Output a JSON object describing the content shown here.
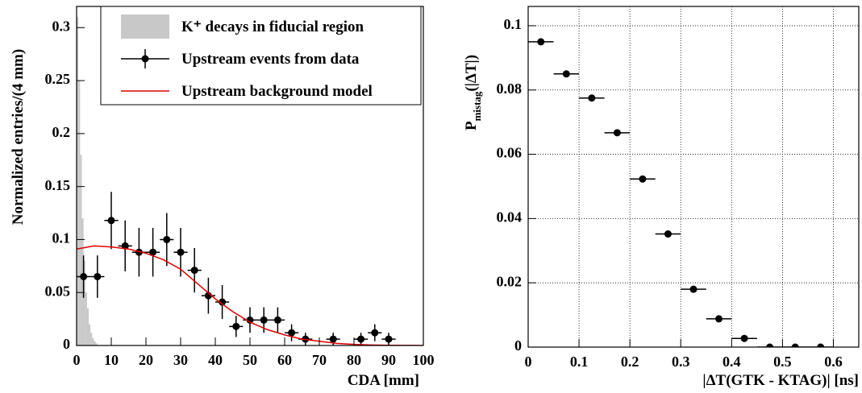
{
  "chart_data": [
    {
      "type": "combo",
      "xlabel": "CDA [mm]",
      "ylabel": "Normalized entries/(4 mm)",
      "xlim": [
        0,
        100
      ],
      "ylim": [
        0,
        0.32
      ],
      "xticks": [
        0,
        10,
        20,
        30,
        40,
        50,
        60,
        70,
        80,
        90,
        100
      ],
      "yticks": [
        0,
        0.05,
        0.1,
        0.15,
        0.2,
        0.25,
        0.3
      ],
      "grid": false,
      "legend": "top-right",
      "series": [
        {
          "name": "K⁺ decays in fiducial region",
          "type": "histogram",
          "color": "#c8c8c8",
          "bins": [
            0,
            0.5,
            1,
            1.5,
            2,
            2.5,
            3,
            3.5,
            4,
            4.5,
            5,
            5.5,
            6
          ],
          "values": [
            0.31,
            0.25,
            0.18,
            0.12,
            0.08,
            0.05,
            0.035,
            0.02,
            0.012,
            0.007,
            0.004,
            0.002
          ]
        },
        {
          "name": "Upstream events from data",
          "type": "errorbar",
          "color": "#000000",
          "x": [
            2,
            6,
            10,
            14,
            18,
            22,
            26,
            30,
            34,
            38,
            42,
            46,
            50,
            54,
            58,
            62,
            66,
            74,
            82,
            86,
            90
          ],
          "values": [
            0.065,
            0.065,
            0.118,
            0.094,
            0.088,
            0.088,
            0.1,
            0.088,
            0.071,
            0.047,
            0.041,
            0.018,
            0.024,
            0.024,
            0.024,
            0.012,
            0.006,
            0.006,
            0.006,
            0.012,
            0.006
          ],
          "xerr": [
            2,
            2,
            2,
            2,
            2,
            2,
            2,
            2,
            2,
            2,
            2,
            2,
            2,
            2,
            2,
            2,
            2,
            2,
            2,
            2,
            2
          ],
          "yerr": [
            0.02,
            0.02,
            0.027,
            0.024,
            0.023,
            0.023,
            0.025,
            0.023,
            0.021,
            0.017,
            0.016,
            0.01,
            0.012,
            0.012,
            0.012,
            0.008,
            0.006,
            0.006,
            0.006,
            0.008,
            0.006
          ]
        },
        {
          "name": "Upstream background model",
          "type": "line",
          "color": "#e00000",
          "x": [
            0,
            5,
            10,
            15,
            20,
            25,
            30,
            35,
            40,
            45,
            50,
            55,
            60,
            65,
            70,
            75,
            80,
            85,
            90,
            95,
            100
          ],
          "values": [
            0.091,
            0.094,
            0.093,
            0.091,
            0.087,
            0.081,
            0.072,
            0.058,
            0.044,
            0.032,
            0.022,
            0.015,
            0.01,
            0.006,
            0.004,
            0.002,
            0.001,
            0.0005,
            0.0002,
            0.0001,
            0
          ]
        }
      ]
    },
    {
      "type": "errorbar",
      "xlabel": "|ΔT(GTK - KTAG)| [ns]",
      "ylabel": {
        "main": "P",
        "sub": "mistag",
        "rest": "(|ΔT|)"
      },
      "xlim": [
        0,
        0.65
      ],
      "ylim": [
        0,
        0.106
      ],
      "xticks": [
        0,
        0.1,
        0.2,
        0.3,
        0.4,
        0.5,
        0.6
      ],
      "yticks": [
        0,
        0.02,
        0.04,
        0.06,
        0.08,
        0.1
      ],
      "grid": true,
      "color": "#000000",
      "x": [
        0.025,
        0.075,
        0.125,
        0.175,
        0.225,
        0.275,
        0.325,
        0.375,
        0.425,
        0.475,
        0.525,
        0.575
      ],
      "values": [
        0.095,
        0.085,
        0.0775,
        0.0667,
        0.0523,
        0.0352,
        0.018,
        0.0088,
        0.0027,
        0,
        0,
        0
      ],
      "xerr": [
        0.025,
        0.025,
        0.025,
        0.025,
        0.025,
        0.025,
        0.025,
        0.025,
        0.025,
        0.025,
        0.025,
        0.025
      ]
    }
  ]
}
